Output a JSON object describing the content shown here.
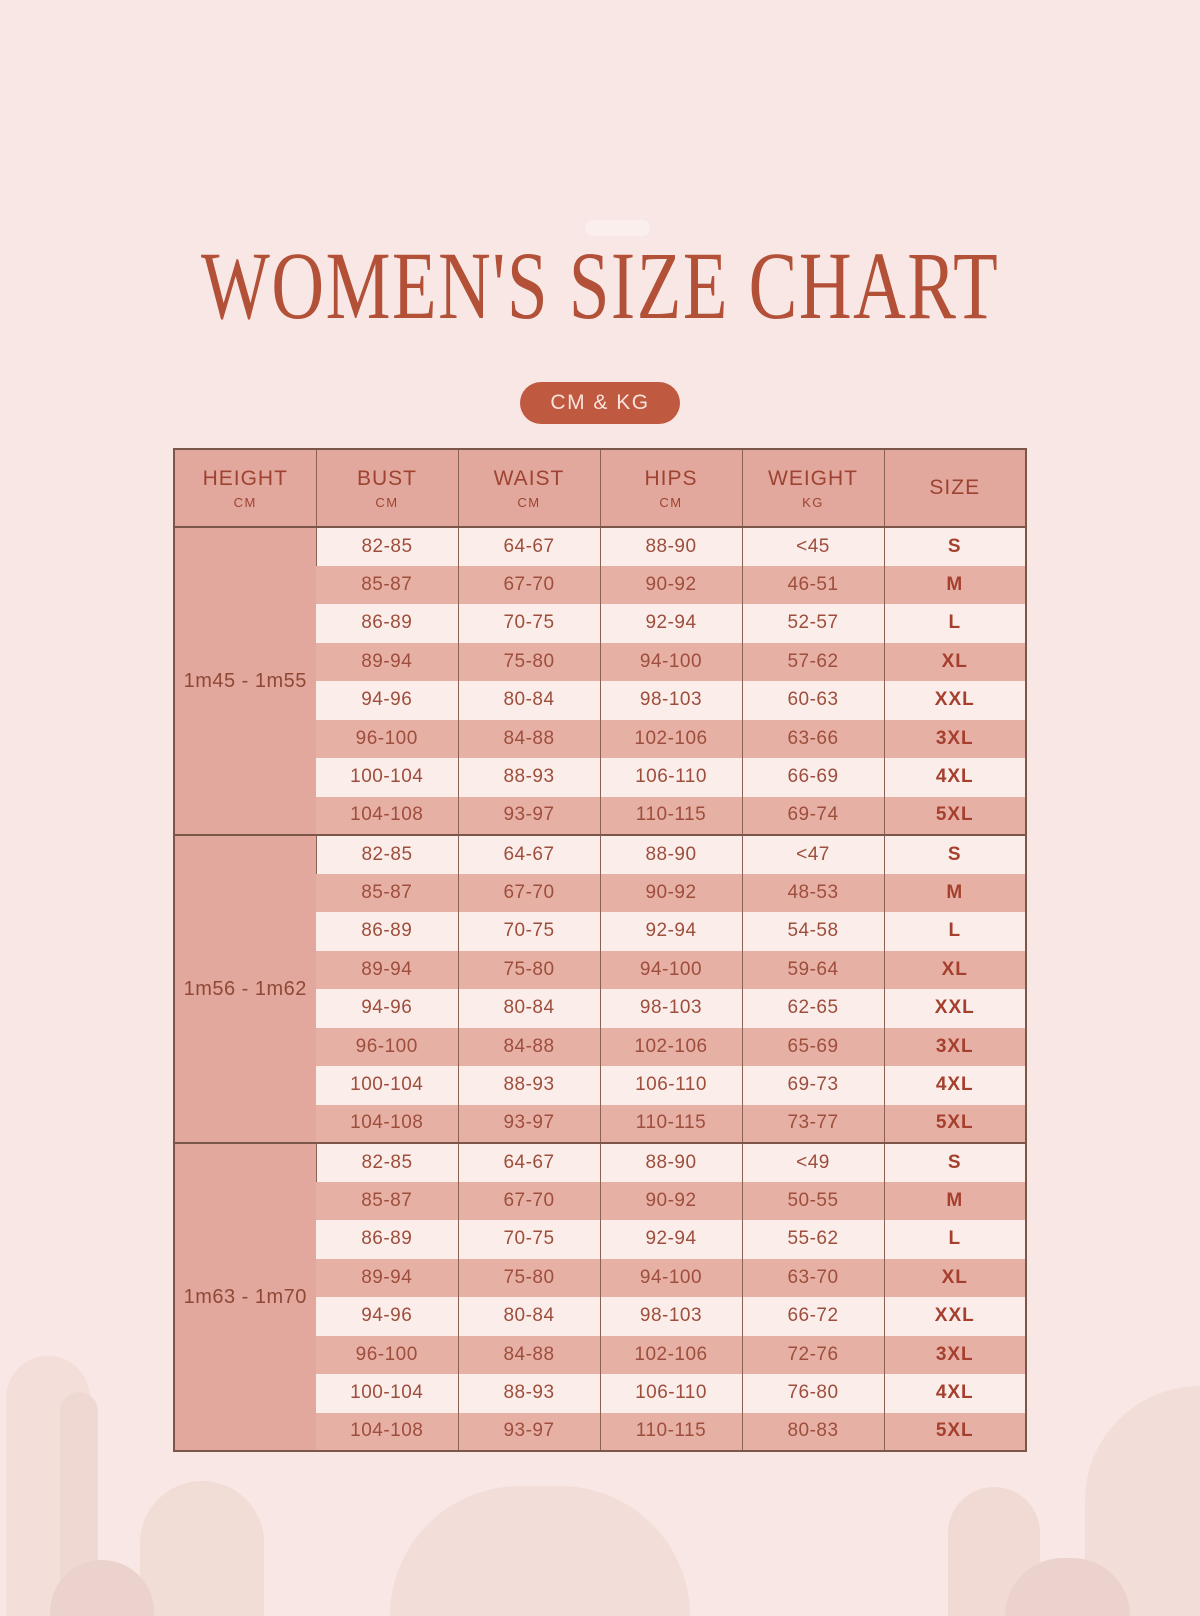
{
  "page": {
    "title": "WOMEN'S SIZE CHART",
    "badge": "CM & KG"
  },
  "colors": {
    "background": "#f8e7e4",
    "accent_terracotta": "#bf5a41",
    "title_text": "#b25138",
    "header_bg": "#e2a89d",
    "row_dark_bg": "#e7b0a5",
    "row_light_bg": "#fbedea",
    "cell_text": "#9e4e3c",
    "border": "#7d564a"
  },
  "chart_data": {
    "type": "table",
    "title": "WOMEN'S SIZE CHART",
    "units_badge": "CM & KG",
    "columns": [
      {
        "label": "HEIGHT",
        "unit": "CM"
      },
      {
        "label": "BUST",
        "unit": "CM"
      },
      {
        "label": "WAIST",
        "unit": "CM"
      },
      {
        "label": "HIPS",
        "unit": "CM"
      },
      {
        "label": "WEIGHT",
        "unit": "KG"
      },
      {
        "label": "SIZE",
        "unit": ""
      }
    ],
    "groups": [
      {
        "height": "1m45 - 1m55",
        "rows": [
          {
            "bust": "82-85",
            "waist": "64-67",
            "hips": "88-90",
            "weight": "<45",
            "size": "S"
          },
          {
            "bust": "85-87",
            "waist": "67-70",
            "hips": "90-92",
            "weight": "46-51",
            "size": "M"
          },
          {
            "bust": "86-89",
            "waist": "70-75",
            "hips": "92-94",
            "weight": "52-57",
            "size": "L"
          },
          {
            "bust": "89-94",
            "waist": "75-80",
            "hips": "94-100",
            "weight": "57-62",
            "size": "XL"
          },
          {
            "bust": "94-96",
            "waist": "80-84",
            "hips": "98-103",
            "weight": "60-63",
            "size": "XXL"
          },
          {
            "bust": "96-100",
            "waist": "84-88",
            "hips": "102-106",
            "weight": "63-66",
            "size": "3XL"
          },
          {
            "bust": "100-104",
            "waist": "88-93",
            "hips": "106-110",
            "weight": "66-69",
            "size": "4XL"
          },
          {
            "bust": "104-108",
            "waist": "93-97",
            "hips": "110-115",
            "weight": "69-74",
            "size": "5XL"
          }
        ]
      },
      {
        "height": "1m56 - 1m62",
        "rows": [
          {
            "bust": "82-85",
            "waist": "64-67",
            "hips": "88-90",
            "weight": "<47",
            "size": "S"
          },
          {
            "bust": "85-87",
            "waist": "67-70",
            "hips": "90-92",
            "weight": "48-53",
            "size": "M"
          },
          {
            "bust": "86-89",
            "waist": "70-75",
            "hips": "92-94",
            "weight": "54-58",
            "size": "L"
          },
          {
            "bust": "89-94",
            "waist": "75-80",
            "hips": "94-100",
            "weight": "59-64",
            "size": "XL"
          },
          {
            "bust": "94-96",
            "waist": "80-84",
            "hips": "98-103",
            "weight": "62-65",
            "size": "XXL"
          },
          {
            "bust": "96-100",
            "waist": "84-88",
            "hips": "102-106",
            "weight": "65-69",
            "size": "3XL"
          },
          {
            "bust": "100-104",
            "waist": "88-93",
            "hips": "106-110",
            "weight": "69-73",
            "size": "4XL"
          },
          {
            "bust": "104-108",
            "waist": "93-97",
            "hips": "110-115",
            "weight": "73-77",
            "size": "5XL"
          }
        ]
      },
      {
        "height": "1m63 - 1m70",
        "rows": [
          {
            "bust": "82-85",
            "waist": "64-67",
            "hips": "88-90",
            "weight": "<49",
            "size": "S"
          },
          {
            "bust": "85-87",
            "waist": "67-70",
            "hips": "90-92",
            "weight": "50-55",
            "size": "M"
          },
          {
            "bust": "86-89",
            "waist": "70-75",
            "hips": "92-94",
            "weight": "55-62",
            "size": "L"
          },
          {
            "bust": "89-94",
            "waist": "75-80",
            "hips": "94-100",
            "weight": "63-70",
            "size": "XL"
          },
          {
            "bust": "94-96",
            "waist": "80-84",
            "hips": "98-103",
            "weight": "66-72",
            "size": "XXL"
          },
          {
            "bust": "96-100",
            "waist": "84-88",
            "hips": "102-106",
            "weight": "72-76",
            "size": "3XL"
          },
          {
            "bust": "100-104",
            "waist": "88-93",
            "hips": "106-110",
            "weight": "76-80",
            "size": "4XL"
          },
          {
            "bust": "104-108",
            "waist": "93-97",
            "hips": "110-115",
            "weight": "80-83",
            "size": "5XL"
          }
        ]
      }
    ]
  }
}
